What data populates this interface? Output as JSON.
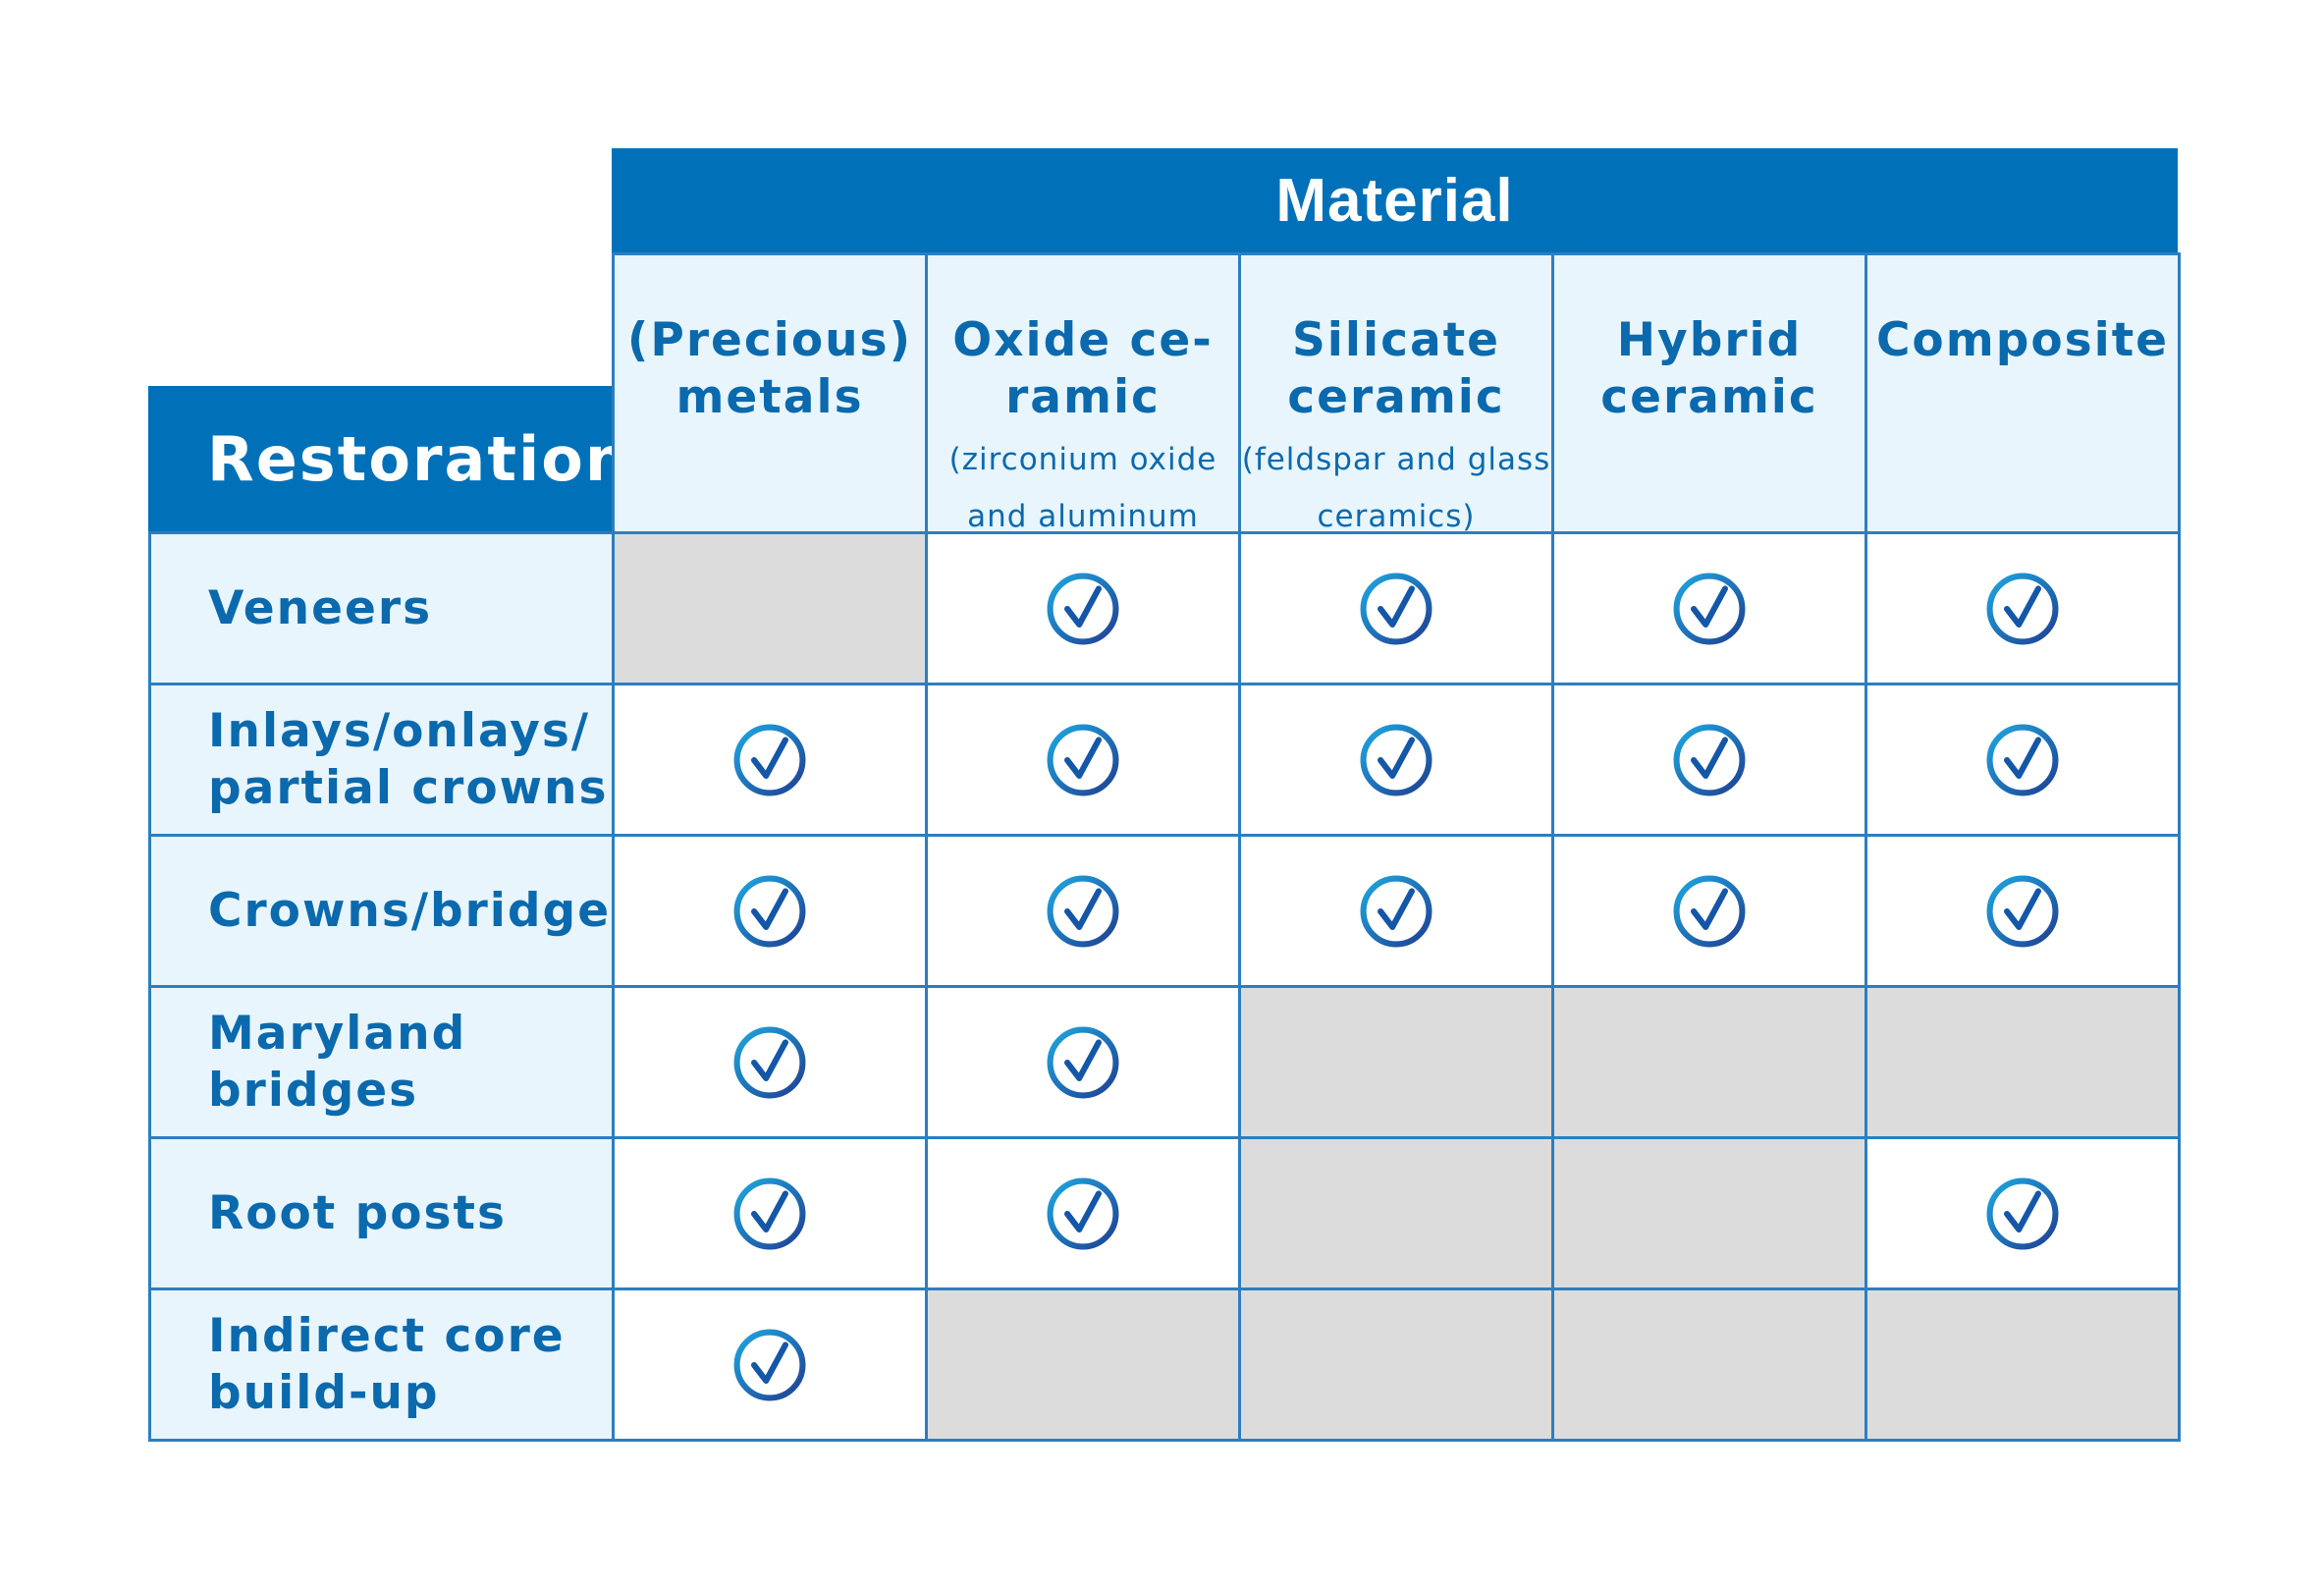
{
  "material_header": "Material",
  "restoration_header": "Restoration",
  "columns": [
    {
      "title": "(Precious)\nmetals",
      "subtitle": ""
    },
    {
      "title": "Oxide ce-\nramic",
      "subtitle": "(zirconium oxide and aluminum oxide ceramics)"
    },
    {
      "title": "Silicate\nceramic",
      "subtitle": "(feldspar and glass ceramics)"
    },
    {
      "title": "Hybrid\nceramic",
      "subtitle": ""
    },
    {
      "title": "Composite",
      "subtitle": ""
    }
  ],
  "rows": [
    {
      "label": "Veneers",
      "values": [
        false,
        true,
        true,
        true,
        true
      ]
    },
    {
      "label": "Inlays/onlays/\npartial crowns",
      "values": [
        true,
        true,
        true,
        true,
        true
      ]
    },
    {
      "label": "Crowns/bridges",
      "values": [
        true,
        true,
        true,
        true,
        true
      ]
    },
    {
      "label": "Maryland\nbridges",
      "values": [
        true,
        true,
        false,
        false,
        false
      ]
    },
    {
      "label": "Root posts",
      "values": [
        true,
        true,
        false,
        false,
        true
      ]
    },
    {
      "label": "Indirect core\nbuild-up",
      "values": [
        true,
        false,
        false,
        false,
        false
      ]
    }
  ],
  "colors": {
    "header_blue": "#0071b9",
    "light_blue": "#e8f5fc",
    "grid_line": "#2c7ec0",
    "text_blue": "#0b69ad",
    "not_applicable_gray": "#dcdcdc"
  },
  "icons": {
    "applicable": "check-circle-icon"
  }
}
